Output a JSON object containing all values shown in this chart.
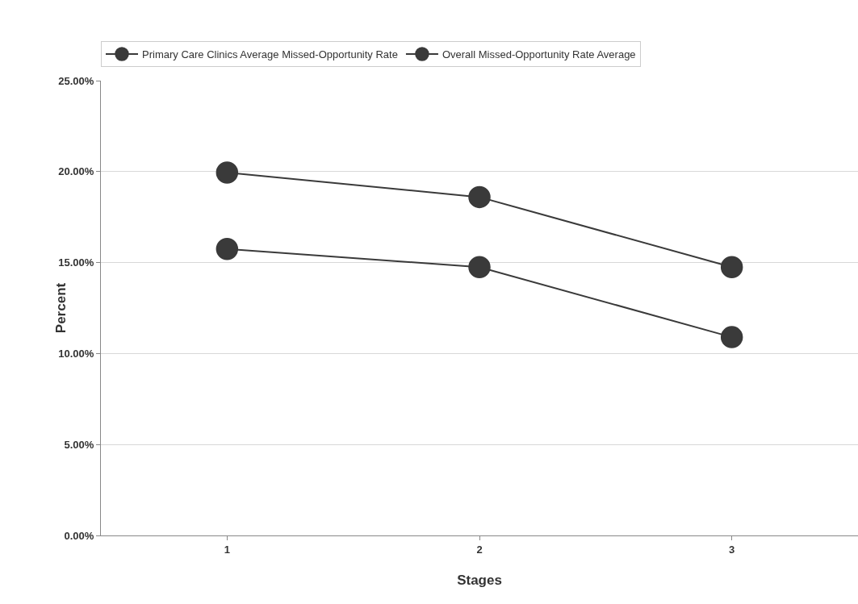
{
  "chart_data": {
    "type": "line",
    "xlabel": "Stages",
    "ylabel": "Percent",
    "categories": [
      "1",
      "2",
      "3"
    ],
    "series": [
      {
        "name": "Primary Care Clinics Average Missed-Opportunity Rate",
        "color": "#3a3a3a",
        "values": [
          15.75,
          14.75,
          10.9
        ]
      },
      {
        "name": "Overall Missed-Opportunity Rate Average",
        "color": "#3a3a3a",
        "values": [
          19.95,
          18.6,
          14.75
        ]
      }
    ],
    "ylim": [
      0,
      25
    ],
    "yticks": [
      {
        "value": 0,
        "label": "0.00%"
      },
      {
        "value": 5,
        "label": "5.00%"
      },
      {
        "value": 10,
        "label": "10.00%"
      },
      {
        "value": 15,
        "label": "15.00%"
      },
      {
        "value": 20,
        "label": "20.00%"
      },
      {
        "value": 25,
        "label": "25.00%"
      }
    ],
    "grid": "y",
    "legend": "top",
    "marker": "circle",
    "line_style": "solid"
  }
}
